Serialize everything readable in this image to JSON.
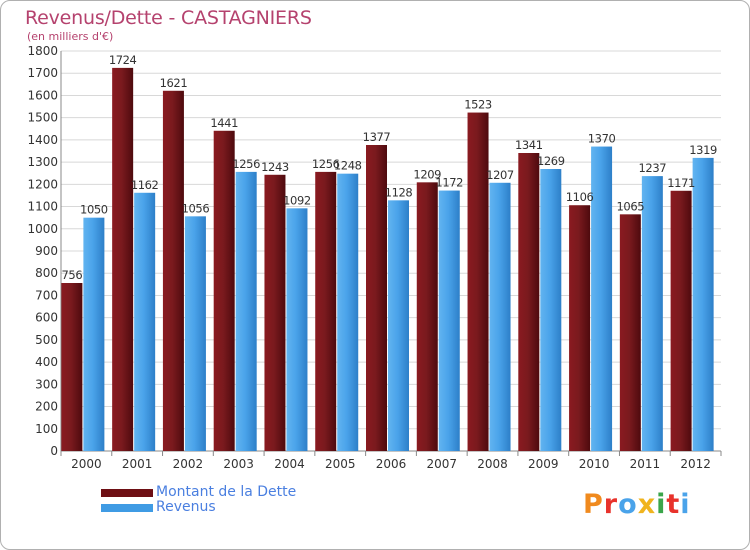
{
  "header": {
    "title": "Revenus/Dette - CASTAGNIERS",
    "subtitle": "(en milliers d'€)"
  },
  "logo": {
    "text": "Proxiti"
  },
  "colors": {
    "dette": "#6e0f14",
    "revenus": "#3f9be4",
    "title": "#b5426e",
    "legend_text": "#4a7fe0"
  },
  "chart_data": {
    "type": "bar",
    "categories": [
      "2000",
      "2001",
      "2002",
      "2003",
      "2004",
      "2005",
      "2006",
      "2007",
      "2008",
      "2009",
      "2010",
      "2011",
      "2012"
    ],
    "series": [
      {
        "name": "Montant de la Dette",
        "values": [
          756,
          1724,
          1621,
          1441,
          1243,
          1256,
          1377,
          1209,
          1523,
          1341,
          1106,
          1065,
          1171
        ]
      },
      {
        "name": "Revenus",
        "values": [
          1050,
          1162,
          1056,
          1256,
          1092,
          1248,
          1128,
          1172,
          1207,
          1269,
          1370,
          1237,
          1319
        ]
      }
    ],
    "ylim": [
      0,
      1800
    ],
    "yticks": [
      0,
      100,
      200,
      300,
      400,
      500,
      600,
      700,
      800,
      900,
      1000,
      1100,
      1200,
      1300,
      1400,
      1500,
      1600,
      1700,
      1800
    ],
    "grid": true,
    "legend": "bottom-left"
  }
}
